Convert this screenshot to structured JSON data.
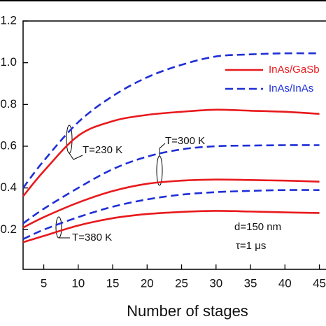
{
  "chart_data": {
    "type": "line",
    "x_label": "Number of stages",
    "x": [
      2,
      5,
      10,
      15,
      20,
      25,
      30,
      35,
      40,
      45
    ],
    "xlim": [
      2,
      48
    ],
    "xticks": [
      5,
      10,
      15,
      20,
      25,
      30,
      35,
      40,
      45
    ],
    "ylim": [
      0,
      1.2
    ],
    "yticks": [
      0.2,
      0.4,
      0.6,
      0.8,
      {
        "value": 1.0,
        "label": "1.0"
      },
      1.2
    ],
    "series": [
      {
        "color": "#e8191c",
        "dashed": false,
        "values": [
          0.36,
          0.48,
          0.65,
          0.72,
          0.75,
          0.765,
          0.775,
          0.77,
          0.765,
          0.755
        ]
      },
      {
        "color": "#1f2fd6",
        "dashed": true,
        "values": [
          0.4,
          0.53,
          0.715,
          0.84,
          0.93,
          0.99,
          1.03,
          1.04,
          1.045,
          1.045
        ]
      },
      {
        "color": "#e8191c",
        "dashed": false,
        "values": [
          0.21,
          0.26,
          0.33,
          0.385,
          0.42,
          0.435,
          0.44,
          0.438,
          0.435,
          0.43
        ]
      },
      {
        "color": "#1f2fd6",
        "dashed": true,
        "values": [
          0.23,
          0.3,
          0.4,
          0.49,
          0.55,
          0.585,
          0.6,
          0.603,
          0.605,
          0.605
        ]
      },
      {
        "color": "#e8191c",
        "dashed": false,
        "values": [
          0.14,
          0.17,
          0.22,
          0.255,
          0.275,
          0.285,
          0.29,
          0.287,
          0.283,
          0.28
        ]
      },
      {
        "color": "#1f2fd6",
        "dashed": true,
        "values": [
          0.155,
          0.2,
          0.26,
          0.31,
          0.345,
          0.368,
          0.38,
          0.386,
          0.39,
          0.39
        ]
      }
    ],
    "legend": [
      {
        "name": "InAs/GaSb",
        "color": "#e8191c",
        "dashed": false
      },
      {
        "name": "InAs/InAs",
        "color": "#1f2fd6",
        "dashed": true
      }
    ],
    "annotations": [
      "T=230 K",
      "T=300 K",
      "T=380 K",
      "d=150 nm",
      "τ=1 μs"
    ]
  }
}
